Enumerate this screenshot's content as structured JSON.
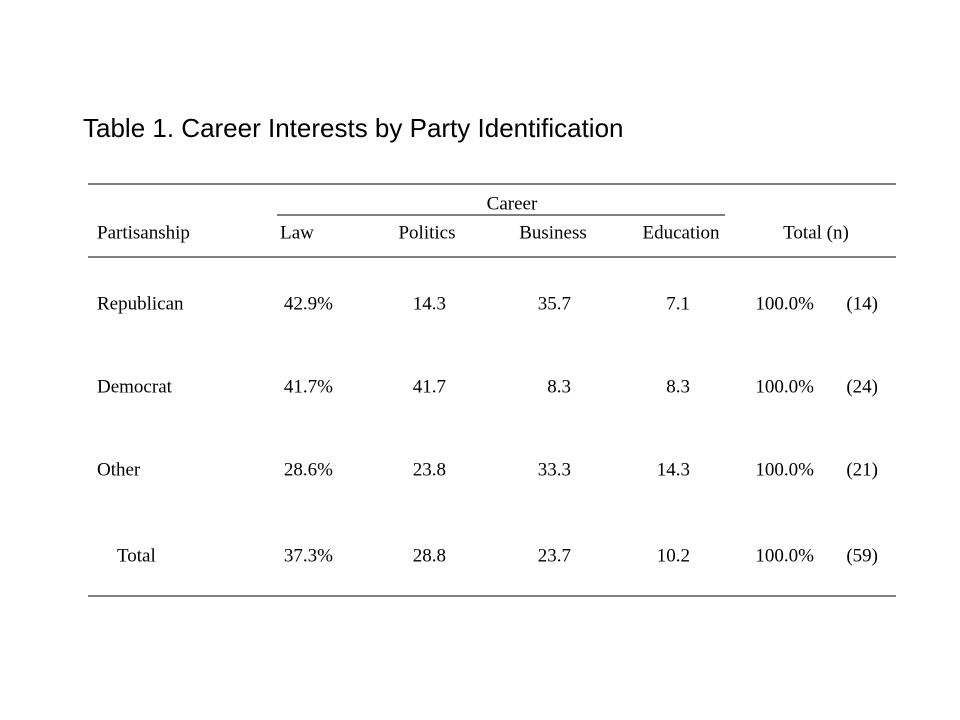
{
  "title": "Table 1. Career Interests by Party Identification",
  "table": {
    "spanner": "Career",
    "headers": [
      "Partisanship",
      "Law",
      "Politics",
      "Business",
      "Education",
      "Total (n)"
    ],
    "rows": [
      [
        "Republican",
        "42.9%",
        "14.3",
        "35.7",
        "7.1",
        "100.0%",
        "(14)"
      ],
      [
        "Democrat",
        "41.7%",
        "41.7",
        "8.3",
        "8.3",
        "100.0%",
        "(24)"
      ],
      [
        "Other",
        "28.6%",
        "23.8",
        "33.3",
        "14.3",
        "100.0%",
        "(21)"
      ],
      [
        "Total",
        "37.3%",
        "28.8",
        "23.7",
        "10.2",
        "100.0%",
        "(59)"
      ]
    ]
  }
}
